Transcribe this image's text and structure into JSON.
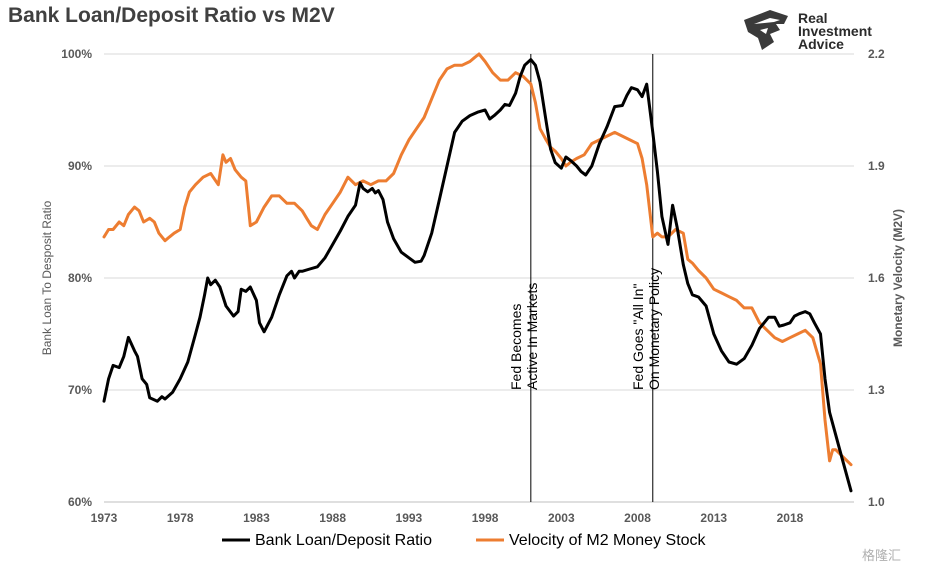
{
  "title": "Bank Loan/Deposit Ratio vs M2V",
  "logo": {
    "text": "Real\nInvestment\nAdvice",
    "icon": "eagle-head-icon"
  },
  "watermark": "格隆汇",
  "chart_data": {
    "type": "line",
    "title": "Bank Loan/Deposit Ratio vs M2V",
    "y_left": {
      "label": "Bank Loan To Desposit Ratio",
      "ticks": [
        "60%",
        "70%",
        "80%",
        "90%",
        "100%"
      ],
      "range": [
        60,
        100
      ]
    },
    "y_right": {
      "label": "Monetary Velocity (M2V)",
      "ticks": [
        "1.0",
        "1.3",
        "1.6",
        "1.9",
        "2.2"
      ],
      "range": [
        1.0,
        2.2
      ]
    },
    "x_axis": {
      "ticks": [
        "1973",
        "1978",
        "1983",
        "1988",
        "1993",
        "1998",
        "2003",
        "2008",
        "2013",
        "2018"
      ],
      "range": [
        1973,
        2022.2
      ]
    },
    "annotations": [
      {
        "year": 2001,
        "line1": "Fed Becomes",
        "line2": "Active In Markets"
      },
      {
        "year": 2009,
        "line1": "Fed Goes \"All In\"",
        "line2": "On Monetary Policy"
      }
    ],
    "legend_position": "bottom",
    "series": [
      {
        "name": "Bank Loan/Deposit Ratio",
        "axis": "left",
        "color": "#000000",
        "points": [
          [
            1973,
            69
          ],
          [
            1973.3,
            71
          ],
          [
            1973.6,
            72.2
          ],
          [
            1974,
            72
          ],
          [
            1974.3,
            73
          ],
          [
            1974.6,
            74.7
          ],
          [
            1975,
            73.5
          ],
          [
            1975.2,
            73
          ],
          [
            1975.5,
            71
          ],
          [
            1975.8,
            70.5
          ],
          [
            1976,
            69.3
          ],
          [
            1976.5,
            69
          ],
          [
            1976.8,
            69.4
          ],
          [
            1977,
            69.2
          ],
          [
            1977.5,
            69.8
          ],
          [
            1978,
            71
          ],
          [
            1978.5,
            72.5
          ],
          [
            1979,
            75
          ],
          [
            1979.3,
            76.5
          ],
          [
            1979.6,
            78.5
          ],
          [
            1979.8,
            80
          ],
          [
            1980,
            79.4
          ],
          [
            1980.3,
            79.8
          ],
          [
            1980.6,
            79.2
          ],
          [
            1981,
            77.5
          ],
          [
            1981.5,
            76.6
          ],
          [
            1981.8,
            77
          ],
          [
            1982,
            79
          ],
          [
            1982.3,
            78.8
          ],
          [
            1982.6,
            79.2
          ],
          [
            1983,
            78
          ],
          [
            1983.2,
            76
          ],
          [
            1983.5,
            75.2
          ],
          [
            1984,
            76.5
          ],
          [
            1984.5,
            78.5
          ],
          [
            1985,
            80.2
          ],
          [
            1985.3,
            80.6
          ],
          [
            1985.5,
            80
          ],
          [
            1985.8,
            80.6
          ],
          [
            1986,
            80.6
          ],
          [
            1986.5,
            80.8
          ],
          [
            1987,
            81
          ],
          [
            1987.5,
            81.8
          ],
          [
            1988,
            83
          ],
          [
            1988.5,
            84.2
          ],
          [
            1989,
            85.5
          ],
          [
            1989.5,
            86.5
          ],
          [
            1989.8,
            88.5
          ],
          [
            1990,
            88
          ],
          [
            1990.3,
            87.7
          ],
          [
            1990.6,
            88
          ],
          [
            1990.8,
            87.6
          ],
          [
            1991,
            87.8
          ],
          [
            1991.3,
            87
          ],
          [
            1991.6,
            85
          ],
          [
            1992,
            83.5
          ],
          [
            1992.5,
            82.3
          ],
          [
            1993,
            81.8
          ],
          [
            1993.4,
            81.4
          ],
          [
            1993.8,
            81.5
          ],
          [
            1994,
            82
          ],
          [
            1994.5,
            84
          ],
          [
            1995,
            87
          ],
          [
            1995.5,
            90
          ],
          [
            1996,
            93
          ],
          [
            1996.5,
            94
          ],
          [
            1997,
            94.5
          ],
          [
            1997.5,
            94.8
          ],
          [
            1998,
            95
          ],
          [
            1998.3,
            94.2
          ],
          [
            1998.6,
            94.5
          ],
          [
            1999,
            95
          ],
          [
            1999.3,
            95.5
          ],
          [
            1999.6,
            95.4
          ],
          [
            2000,
            96.5
          ],
          [
            2000.3,
            98
          ],
          [
            2000.6,
            99
          ],
          [
            2001,
            99.5
          ],
          [
            2001.3,
            99
          ],
          [
            2001.6,
            97.5
          ],
          [
            2002,
            94
          ],
          [
            2002.3,
            91.5
          ],
          [
            2002.6,
            90.3
          ],
          [
            2003,
            89.8
          ],
          [
            2003.3,
            90.8
          ],
          [
            2003.6,
            90.5
          ],
          [
            2004,
            90
          ],
          [
            2004.3,
            89.5
          ],
          [
            2004.6,
            89.2
          ],
          [
            2005,
            90
          ],
          [
            2005.5,
            92
          ],
          [
            2006,
            93.5
          ],
          [
            2006.5,
            95.3
          ],
          [
            2007,
            95.4
          ],
          [
            2007.3,
            96.3
          ],
          [
            2007.6,
            97
          ],
          [
            2008,
            96.8
          ],
          [
            2008.3,
            96.2
          ],
          [
            2008.6,
            97.3
          ],
          [
            2009,
            93
          ],
          [
            2009.3,
            89.5
          ],
          [
            2009.6,
            85.5
          ],
          [
            2010,
            83
          ],
          [
            2010.3,
            86.5
          ],
          [
            2010.6,
            84.5
          ],
          [
            2011,
            81.2
          ],
          [
            2011.3,
            79.5
          ],
          [
            2011.6,
            78.5
          ],
          [
            2012,
            78.3
          ],
          [
            2012.5,
            77.5
          ],
          [
            2013,
            75
          ],
          [
            2013.5,
            73.5
          ],
          [
            2014,
            72.5
          ],
          [
            2014.5,
            72.3
          ],
          [
            2015,
            72.8
          ],
          [
            2015.5,
            74
          ],
          [
            2016,
            75.5
          ],
          [
            2016.3,
            76
          ],
          [
            2016.6,
            76.5
          ],
          [
            2017,
            76.5
          ],
          [
            2017.3,
            75.7
          ],
          [
            2017.6,
            75.8
          ],
          [
            2018,
            76
          ],
          [
            2018.3,
            76.6
          ],
          [
            2018.6,
            76.8
          ],
          [
            2019,
            77
          ],
          [
            2019.3,
            76.8
          ],
          [
            2019.6,
            76
          ],
          [
            2020,
            75
          ],
          [
            2020.3,
            71
          ],
          [
            2020.6,
            68
          ],
          [
            2021,
            66
          ],
          [
            2021.5,
            63.5
          ],
          [
            2022,
            61
          ]
        ]
      },
      {
        "name": "Velocity of M2 Money Stock",
        "axis": "right",
        "color": "#ED7D31",
        "points": [
          [
            1973,
            1.71
          ],
          [
            1973.3,
            1.73
          ],
          [
            1973.6,
            1.73
          ],
          [
            1974,
            1.75
          ],
          [
            1974.3,
            1.74
          ],
          [
            1974.6,
            1.77
          ],
          [
            1975,
            1.79
          ],
          [
            1975.3,
            1.78
          ],
          [
            1975.6,
            1.75
          ],
          [
            1976,
            1.76
          ],
          [
            1976.3,
            1.75
          ],
          [
            1976.6,
            1.72
          ],
          [
            1977,
            1.7
          ],
          [
            1977.3,
            1.71
          ],
          [
            1977.6,
            1.72
          ],
          [
            1978,
            1.73
          ],
          [
            1978.3,
            1.79
          ],
          [
            1978.6,
            1.83
          ],
          [
            1979,
            1.85
          ],
          [
            1979.5,
            1.87
          ],
          [
            1980,
            1.88
          ],
          [
            1980.5,
            1.85
          ],
          [
            1980.8,
            1.93
          ],
          [
            1981,
            1.91
          ],
          [
            1981.3,
            1.92
          ],
          [
            1981.6,
            1.89
          ],
          [
            1982,
            1.87
          ],
          [
            1982.3,
            1.86
          ],
          [
            1982.6,
            1.74
          ],
          [
            1983,
            1.75
          ],
          [
            1983.5,
            1.79
          ],
          [
            1984,
            1.82
          ],
          [
            1984.5,
            1.82
          ],
          [
            1985,
            1.8
          ],
          [
            1985.5,
            1.8
          ],
          [
            1986,
            1.78
          ],
          [
            1986.3,
            1.76
          ],
          [
            1986.6,
            1.74
          ],
          [
            1987,
            1.73
          ],
          [
            1987.5,
            1.77
          ],
          [
            1988,
            1.8
          ],
          [
            1988.5,
            1.83
          ],
          [
            1989,
            1.87
          ],
          [
            1989.5,
            1.85
          ],
          [
            1990,
            1.86
          ],
          [
            1990.5,
            1.85
          ],
          [
            1991,
            1.86
          ],
          [
            1991.5,
            1.86
          ],
          [
            1992,
            1.88
          ],
          [
            1992.5,
            1.93
          ],
          [
            1993,
            1.97
          ],
          [
            1993.5,
            2.0
          ],
          [
            1994,
            2.03
          ],
          [
            1994.5,
            2.08
          ],
          [
            1995,
            2.13
          ],
          [
            1995.5,
            2.16
          ],
          [
            1996,
            2.17
          ],
          [
            1996.5,
            2.17
          ],
          [
            1997,
            2.18
          ],
          [
            1997.3,
            2.19
          ],
          [
            1997.6,
            2.2
          ],
          [
            1998,
            2.18
          ],
          [
            1998.5,
            2.15
          ],
          [
            1999,
            2.13
          ],
          [
            1999.5,
            2.13
          ],
          [
            2000,
            2.15
          ],
          [
            2000.5,
            2.14
          ],
          [
            2001,
            2.12
          ],
          [
            2001.3,
            2.07
          ],
          [
            2001.6,
            2.0
          ],
          [
            2002,
            1.97
          ],
          [
            2002.3,
            1.95
          ],
          [
            2002.6,
            1.94
          ],
          [
            2003,
            1.92
          ],
          [
            2003.3,
            1.9
          ],
          [
            2003.6,
            1.91
          ],
          [
            2004,
            1.92
          ],
          [
            2004.5,
            1.93
          ],
          [
            2005,
            1.96
          ],
          [
            2005.5,
            1.97
          ],
          [
            2006,
            1.98
          ],
          [
            2006.5,
            1.99
          ],
          [
            2007,
            1.98
          ],
          [
            2007.5,
            1.97
          ],
          [
            2008,
            1.96
          ],
          [
            2008.3,
            1.92
          ],
          [
            2008.6,
            1.85
          ],
          [
            2009,
            1.71
          ],
          [
            2009.3,
            1.72
          ],
          [
            2009.6,
            1.71
          ],
          [
            2010,
            1.71
          ],
          [
            2010.5,
            1.73
          ],
          [
            2011,
            1.72
          ],
          [
            2011.3,
            1.65
          ],
          [
            2011.6,
            1.64
          ],
          [
            2012,
            1.62
          ],
          [
            2012.5,
            1.6
          ],
          [
            2013,
            1.57
          ],
          [
            2013.5,
            1.56
          ],
          [
            2014,
            1.55
          ],
          [
            2014.5,
            1.54
          ],
          [
            2015,
            1.52
          ],
          [
            2015.5,
            1.52
          ],
          [
            2016,
            1.48
          ],
          [
            2016.5,
            1.46
          ],
          [
            2017,
            1.44
          ],
          [
            2017.5,
            1.43
          ],
          [
            2018,
            1.44
          ],
          [
            2018.5,
            1.45
          ],
          [
            2019,
            1.46
          ],
          [
            2019.5,
            1.44
          ],
          [
            2020,
            1.37
          ],
          [
            2020.3,
            1.22
          ],
          [
            2020.6,
            1.11
          ],
          [
            2020.8,
            1.14
          ],
          [
            2021,
            1.14
          ],
          [
            2021.5,
            1.12
          ],
          [
            2022,
            1.1
          ]
        ]
      }
    ]
  }
}
